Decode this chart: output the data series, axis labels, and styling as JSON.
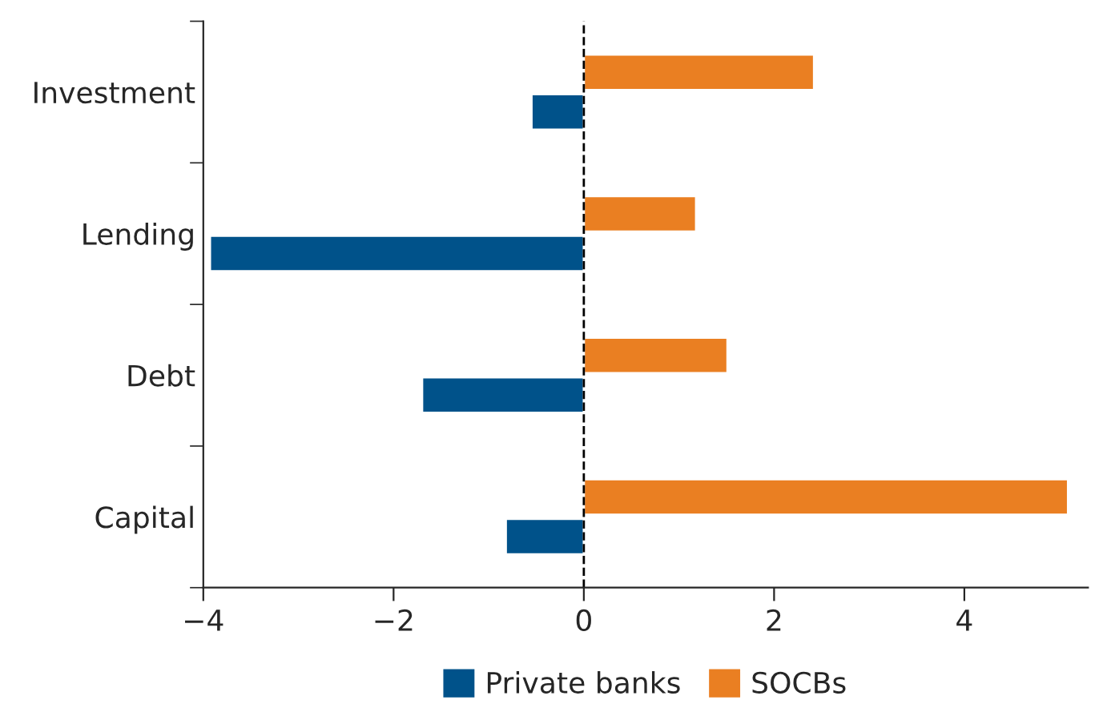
{
  "chart_data": {
    "type": "bar",
    "orientation": "horizontal",
    "categories": [
      "Investment",
      "Lending",
      "Debt",
      "Capital"
    ],
    "series": [
      {
        "name": "Private banks",
        "color": "#00528a",
        "values": [
          -0.55,
          -3.93,
          -1.7,
          -0.82
        ]
      },
      {
        "name": "SOCBs",
        "color": "#ea7f22",
        "values": [
          2.42,
          1.18,
          1.51,
          5.09
        ]
      }
    ],
    "xlim": [
      -4,
      5.3
    ],
    "xticks": [
      {
        "value": -4,
        "label": "−4"
      },
      {
        "value": -2,
        "label": "−2"
      },
      0,
      2,
      4
    ],
    "ref_lines": [
      {
        "axis": "x",
        "value": 0,
        "color": "#000000",
        "line_style": "dashed"
      }
    ],
    "grid": false,
    "legend": "bottom"
  }
}
